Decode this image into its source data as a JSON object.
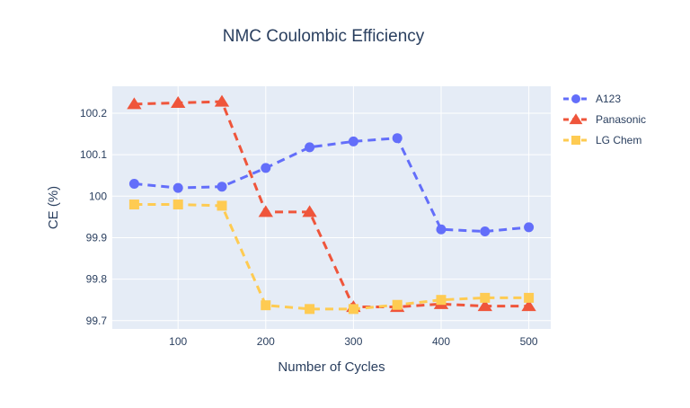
{
  "chart_data": {
    "type": "line",
    "title": "NMC Coulombic Efficiency",
    "xlabel": "Number of Cycles",
    "ylabel": "CE (%)",
    "xlim": [
      25,
      525
    ],
    "ylim": [
      99.68,
      100.265
    ],
    "xticks": [
      100,
      200,
      300,
      400,
      500
    ],
    "yticks": [
      99.7,
      99.8,
      99.9,
      100,
      100.1,
      100.2
    ],
    "ytick_labels": [
      "99.7",
      "99.8",
      "99.9",
      "100",
      "100.1",
      "100.2"
    ],
    "grid": true,
    "legend_position": "top-right",
    "x": [
      50,
      100,
      150,
      200,
      250,
      300,
      350,
      400,
      450,
      500
    ],
    "series": [
      {
        "name": "A123",
        "marker": "circle",
        "color": "#636efa",
        "values": [
          100.03,
          100.02,
          100.023,
          100.068,
          100.118,
          100.132,
          100.14,
          99.92,
          99.915,
          99.925
        ]
      },
      {
        "name": "Panasonic",
        "marker": "triangle-up",
        "color": "#ef553b",
        "values": [
          100.222,
          100.225,
          100.228,
          99.962,
          99.962,
          99.733,
          99.733,
          99.74,
          99.735,
          99.735
        ]
      },
      {
        "name": "LG Chem",
        "marker": "square",
        "color": "#fecb52",
        "values": [
          99.98,
          99.98,
          99.977,
          99.737,
          99.728,
          99.728,
          99.738,
          99.75,
          99.755,
          99.755
        ]
      }
    ]
  }
}
